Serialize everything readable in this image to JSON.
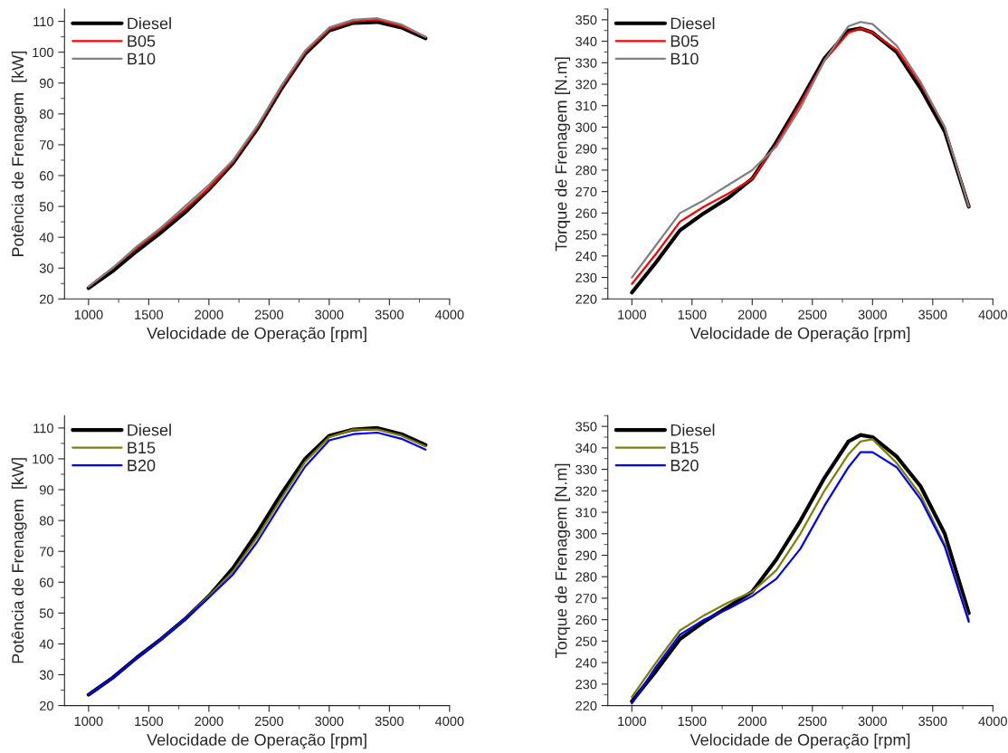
{
  "chart_data": [
    {
      "type": "line",
      "xlabel": "Velocidade de Operação [rpm]",
      "ylabel": "Potência de Frenagem  [kW]",
      "x": [
        1000,
        1200,
        1400,
        1600,
        1800,
        2000,
        2200,
        2400,
        2600,
        2800,
        3000,
        3200,
        3400,
        3600,
        3800
      ],
      "xlim": [
        800,
        4000
      ],
      "xticks": [
        1000,
        1500,
        2000,
        2500,
        3000,
        3500,
        4000
      ],
      "ylim": [
        20,
        114
      ],
      "yticks": [
        20,
        30,
        40,
        50,
        60,
        70,
        80,
        90,
        100,
        110
      ],
      "legend": "top left",
      "grid": false,
      "series": [
        {
          "name": "Diesel",
          "color": "#000000",
          "values": [
            23.5,
            29,
            35.5,
            41.5,
            48,
            55.5,
            64,
            75,
            88,
            99.5,
            107,
            109.5,
            109.8,
            108,
            104.5
          ]
        },
        {
          "name": "B05",
          "color": "#ff0000",
          "values": [
            24,
            30,
            36.5,
            42.5,
            49,
            56,
            64.5,
            75.5,
            88.5,
            100,
            107.5,
            110,
            110.5,
            108.5,
            105
          ]
        },
        {
          "name": "B10",
          "color": "#808080",
          "values": [
            24,
            30,
            37,
            43,
            50,
            57,
            65,
            76,
            89,
            100.5,
            108,
            110.5,
            111,
            109,
            105
          ]
        }
      ]
    },
    {
      "type": "line",
      "xlabel": "Velocidade de Operação [rpm]",
      "ylabel": "Torque de Frenagem [N.m]",
      "x": [
        1000,
        1200,
        1400,
        1600,
        1800,
        2000,
        2200,
        2400,
        2600,
        2800,
        2900,
        3000,
        3200,
        3400,
        3600,
        3800
      ],
      "xlim": [
        800,
        4000
      ],
      "xticks": [
        1000,
        1500,
        2000,
        2500,
        3000,
        3500,
        4000
      ],
      "ylim": [
        220,
        355
      ],
      "yticks": [
        220,
        230,
        240,
        250,
        260,
        270,
        280,
        290,
        300,
        310,
        320,
        330,
        340,
        350
      ],
      "legend": "top left",
      "grid": false,
      "series": [
        {
          "name": "Diesel",
          "color": "#000000",
          "values": [
            223,
            237,
            252,
            260,
            267,
            276,
            293,
            312,
            332,
            345,
            346,
            344,
            335,
            318,
            298,
            263
          ]
        },
        {
          "name": "B05",
          "color": "#ff0000",
          "values": [
            227,
            241,
            256,
            263,
            269,
            276,
            292,
            311,
            331,
            344,
            346,
            344,
            336,
            320,
            300,
            263
          ]
        },
        {
          "name": "B10",
          "color": "#808080",
          "values": [
            230,
            245,
            260,
            266,
            273,
            280,
            291,
            309,
            331,
            347,
            349,
            348,
            338,
            321,
            300,
            263
          ]
        }
      ]
    },
    {
      "type": "line",
      "xlabel": "Velocidade de Operação [rpm]",
      "ylabel": "Potência de Frenagem  [kW]",
      "x": [
        1000,
        1200,
        1400,
        1600,
        1800,
        2000,
        2200,
        2400,
        2600,
        2800,
        3000,
        3200,
        3400,
        3600,
        3800
      ],
      "xlim": [
        800,
        4000
      ],
      "xticks": [
        1000,
        1500,
        2000,
        2500,
        3000,
        3500,
        4000
      ],
      "ylim": [
        20,
        114
      ],
      "yticks": [
        20,
        30,
        40,
        50,
        60,
        70,
        80,
        90,
        100,
        110
      ],
      "legend": "top left",
      "grid": false,
      "series": [
        {
          "name": "Diesel",
          "color": "#000000",
          "values": [
            23.5,
            29,
            35.5,
            41.5,
            48,
            55.5,
            64.5,
            76,
            88.5,
            100,
            107.5,
            109.5,
            110,
            108,
            104.5
          ]
        },
        {
          "name": "B15",
          "color": "#808000",
          "values": [
            null,
            null,
            null,
            41.5,
            48,
            55.5,
            63.5,
            74.5,
            87,
            99,
            107,
            109.5,
            109.5,
            107.5,
            104
          ]
        },
        {
          "name": "B20",
          "color": "#0000ff",
          "values": [
            23.5,
            29,
            35.5,
            41.5,
            48,
            55,
            62.5,
            73,
            85.5,
            97.5,
            106,
            108,
            108.5,
            106.5,
            103
          ]
        }
      ]
    },
    {
      "type": "line",
      "xlabel": "Velocidade de Operação [rpm]",
      "ylabel": "Torque de Frenagem [N.m]",
      "x": [
        1000,
        1200,
        1400,
        1600,
        1800,
        2000,
        2200,
        2400,
        2600,
        2800,
        2900,
        3000,
        3200,
        3400,
        3600,
        3800
      ],
      "xlim": [
        800,
        4000
      ],
      "xticks": [
        1000,
        1500,
        2000,
        2500,
        3000,
        3500,
        4000
      ],
      "ylim": [
        220,
        355
      ],
      "yticks": [
        220,
        230,
        240,
        250,
        260,
        270,
        280,
        290,
        300,
        310,
        320,
        330,
        340,
        350
      ],
      "legend": "top left",
      "grid": false,
      "series": [
        {
          "name": "Diesel",
          "color": "#000000",
          "values": [
            222,
            236,
            251,
            259,
            266,
            273,
            288,
            306,
            326,
            343,
            346,
            345,
            336,
            322,
            300,
            263
          ]
        },
        {
          "name": "B15",
          "color": "#808000",
          "values": [
            224,
            240,
            255,
            262,
            268,
            273,
            283,
            300,
            320,
            337,
            343,
            344,
            333,
            318,
            295,
            260
          ]
        },
        {
          "name": "B20",
          "color": "#0000ff",
          "values": [
            221,
            238,
            253,
            260,
            265,
            271,
            279,
            293,
            313,
            331,
            338,
            338,
            331,
            316,
            294,
            259
          ]
        }
      ]
    }
  ]
}
